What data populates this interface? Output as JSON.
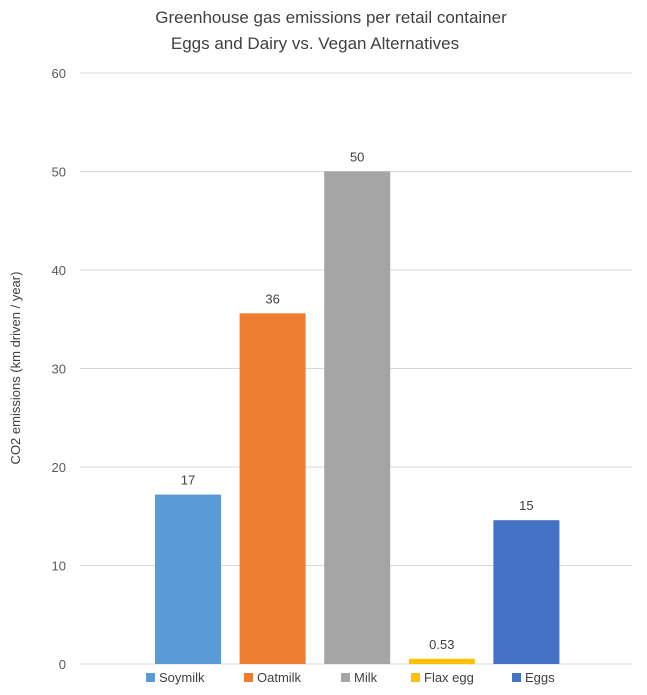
{
  "chart_data": {
    "type": "bar",
    "title": "Greenhouse gas emissions per retail container",
    "subtitle": "Eggs and Dairy vs. Vegan Alternatives",
    "xlabel": "",
    "ylabel": "CO2 emissions (km driven / year)",
    "ylim": [
      0,
      60
    ],
    "yticks": [
      0,
      10,
      20,
      30,
      40,
      50,
      60
    ],
    "grid": true,
    "legend": "bottom",
    "categories": [
      "Soymilk",
      "Oatmilk",
      "Milk",
      "Flax egg",
      "Eggs"
    ],
    "values": [
      17.2,
      35.6,
      50,
      0.53,
      14.6
    ],
    "data_labels": [
      "17",
      "36",
      "50",
      "0.53",
      "15"
    ],
    "colors": [
      "#5B9BD5",
      "#ED7D31",
      "#A5A5A5",
      "#FFC000",
      "#4472C4"
    ]
  }
}
